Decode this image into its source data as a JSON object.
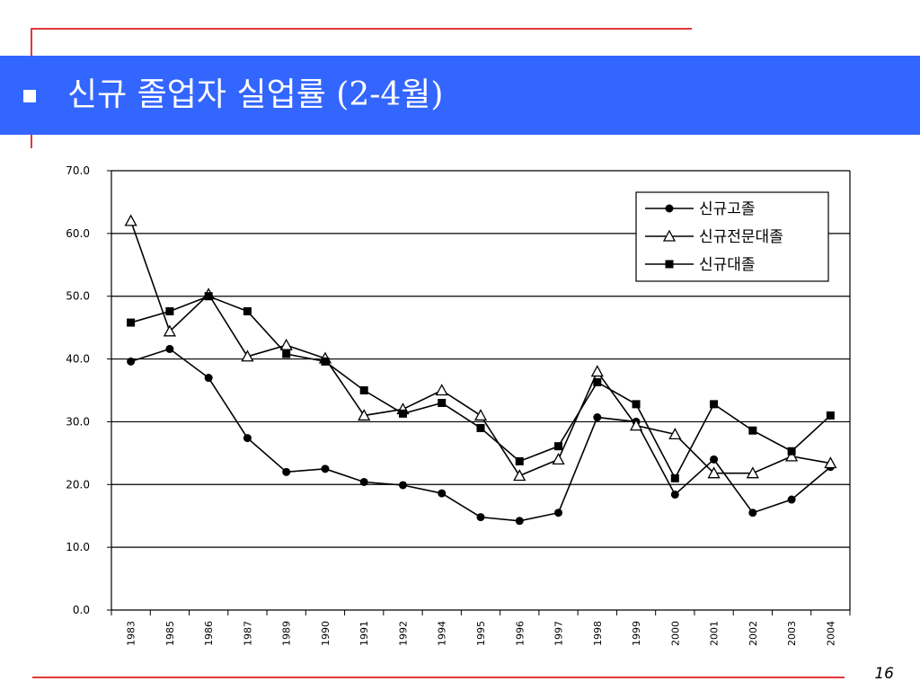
{
  "slide": {
    "title": "신규 졸업자 실업률 (2-4월)",
    "page_number": "16",
    "bullet_icon": "square-bullet-icon",
    "colors": {
      "title_band": "#3366ff",
      "accent_line": "#e03a3a",
      "title_text": "#ffffff"
    }
  },
  "chart_data": {
    "type": "line",
    "title": "",
    "xlabel": "",
    "ylabel": "",
    "ylim": [
      0,
      70
    ],
    "yticks": [
      "0.0",
      "10.0",
      "20.0",
      "30.0",
      "40.0",
      "50.0",
      "60.0",
      "70.0"
    ],
    "grid": "horizontal",
    "legend_position": "top-right",
    "categories": [
      "1983",
      "1985",
      "1986",
      "1987",
      "1989",
      "1990",
      "1991",
      "1992",
      "1994",
      "1995",
      "1996",
      "1997",
      "1998",
      "1999",
      "2000",
      "2001",
      "2002",
      "2003",
      "2004"
    ],
    "series": [
      {
        "name": "신규고졸",
        "marker": "circle",
        "values": [
          39.6,
          41.6,
          37.0,
          27.4,
          22.0,
          22.5,
          20.4,
          19.9,
          18.6,
          14.8,
          14.2,
          15.5,
          30.7,
          30.0,
          18.4,
          24.0,
          15.5,
          17.6,
          22.8
        ]
      },
      {
        "name": "신규전문대졸",
        "marker": "triangle",
        "values": [
          62.0,
          44.4,
          50.3,
          40.4,
          42.2,
          40.1,
          31.0,
          32.0,
          35.0,
          31.0,
          21.4,
          24.0,
          38.0,
          29.4,
          28.0,
          21.8,
          21.8,
          24.5,
          23.4
        ]
      },
      {
        "name": "신규대졸",
        "marker": "square",
        "values": [
          45.8,
          47.6,
          50.0,
          47.6,
          40.8,
          39.6,
          35.0,
          31.3,
          33.0,
          29.0,
          23.7,
          26.1,
          36.3,
          32.8,
          21.0,
          32.8,
          28.6,
          25.3,
          31.0
        ]
      }
    ]
  }
}
